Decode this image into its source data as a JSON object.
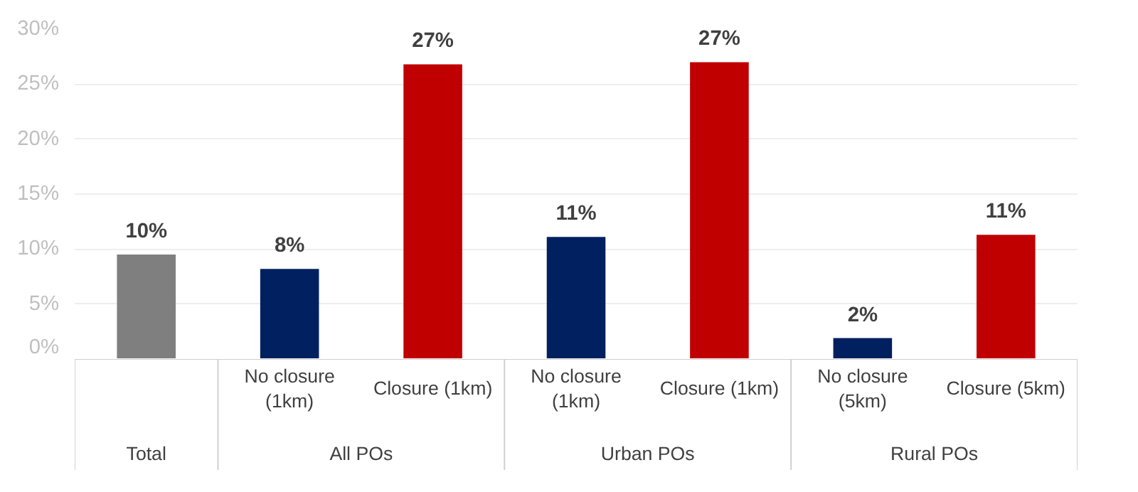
{
  "chart_data": {
    "type": "bar",
    "categories": [
      null,
      "No closure (1km)",
      "Closure (1km)",
      "No closure (1km)",
      "Closure (1km)",
      "No closure (5km)",
      "Closure (5km)"
    ],
    "values": [
      9.5,
      8.2,
      26.8,
      11.1,
      27.0,
      1.9,
      11.3
    ],
    "colors": [
      "#7f7f7f",
      "#002060",
      "#c00000",
      "#002060",
      "#c00000",
      "#002060",
      "#c00000"
    ],
    "value_labels": [
      "10%",
      "8%",
      "27%",
      "11%",
      "27%",
      "2%",
      "11%"
    ],
    "ylim": [
      0,
      30
    ],
    "yticks": [
      {
        "value": 0,
        "label": "0%"
      },
      {
        "value": 5,
        "label": "5%"
      },
      {
        "value": 10,
        "label": "10%"
      },
      {
        "value": 15,
        "label": "15%"
      },
      {
        "value": 20,
        "label": "20%"
      },
      {
        "value": 25,
        "label": "25%"
      },
      {
        "value": 30,
        "label": "30%"
      }
    ],
    "grid": "y",
    "annotations": [
      "Total",
      "All POs",
      "Urban POs",
      "Rural POs"
    ]
  }
}
